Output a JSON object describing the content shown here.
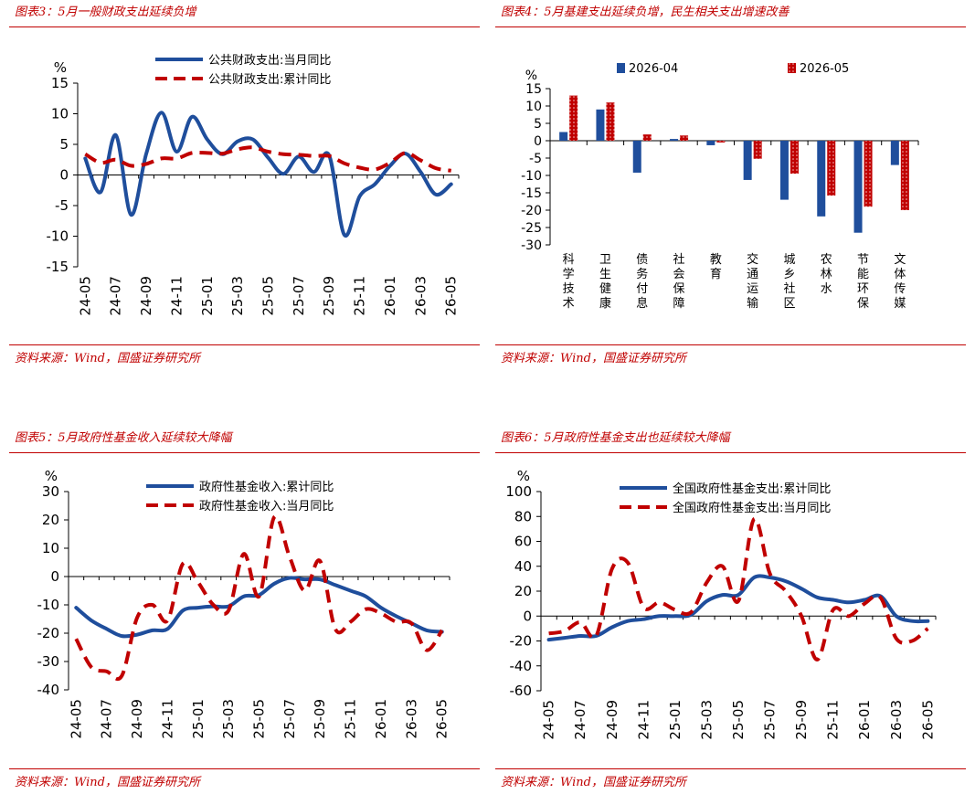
{
  "panels": [
    {
      "title": "图表3：5月一般财政支出延续负增",
      "source": "资料来源：Wind，国盛证券研究所"
    },
    {
      "title": "图表4：5月基建支出延续负增，民生相关支出增速改善",
      "source": "资料来源：Wind，国盛证券研究所"
    },
    {
      "title": "图表5：5月政府性基金收入延续较大降幅",
      "source": "资料来源：Wind，国盛证券研究所"
    },
    {
      "title": "图表6：5月政府性基金支出也延续较大降幅",
      "source": "资料来源：Wind，国盛证券研究所"
    }
  ],
  "colors": {
    "blue": "#1f4e9c",
    "red": "#c00000",
    "title_red": "#c00000"
  },
  "chart_data": [
    {
      "type": "line",
      "title": "",
      "ylabel": "%",
      "ylim": [
        -15,
        15
      ],
      "yticks": [
        15,
        10,
        5,
        0,
        -5,
        -10,
        -15
      ],
      "xtick_labels": [
        "24-05",
        "24-07",
        "24-09",
        "24-11",
        "25-01",
        "25-03",
        "25-05",
        "25-07",
        "25-09",
        "25-11",
        "26-01",
        "26-03",
        "26-05"
      ],
      "x": [
        "24-05",
        "24-06",
        "24-07",
        "24-08",
        "24-09",
        "24-10",
        "24-11",
        "24-12",
        "25-01",
        "25-02",
        "25-03",
        "25-04",
        "25-05",
        "25-06",
        "25-07",
        "25-08",
        "25-09",
        "25-10",
        "25-11",
        "25-12",
        "26-01",
        "26-02",
        "26-03",
        "26-04",
        "26-05"
      ],
      "series": [
        {
          "name": "公共财政支出:当月同比",
          "style": "solid",
          "color": "#1f4e9c",
          "values": [
            2.7,
            -2.8,
            6.5,
            -6.5,
            3.5,
            10.2,
            3.8,
            9.5,
            5.8,
            3.4,
            5.5,
            5.8,
            2.8,
            0.2,
            3.0,
            0.5,
            3.2,
            -9.8,
            -3.5,
            -1.5,
            1.5,
            3.5,
            0.5,
            -3.2,
            -1.5
          ]
        },
        {
          "name": "公共财政支出:累计同比",
          "style": "dashed",
          "color": "#c00000",
          "values": [
            3.4,
            2.0,
            2.5,
            1.5,
            1.8,
            2.7,
            2.7,
            3.6,
            3.6,
            3.5,
            4.2,
            4.5,
            3.8,
            3.4,
            3.3,
            3.1,
            3.1,
            1.9,
            1.2,
            0.9,
            2.0,
            3.6,
            2.4,
            1.1,
            0.7
          ]
        }
      ]
    },
    {
      "type": "bar",
      "title": "",
      "ylabel": "%",
      "ylim": [
        -30,
        15
      ],
      "yticks": [
        15,
        10,
        5,
        0,
        -5,
        -10,
        -15,
        -20,
        -25,
        -30
      ],
      "categories": [
        "科学技术",
        "卫生健康",
        "债务付息",
        "社会保障",
        "教育",
        "交通运输",
        "城乡社区",
        "农林水",
        "节能环保",
        "文体传媒"
      ],
      "series": [
        {
          "name": "2026-04",
          "color": "#1f4e9c",
          "values": [
            2.5,
            9,
            -9.2,
            0.5,
            -1.3,
            -11.3,
            -17,
            -21.8,
            -26.5,
            -7
          ]
        },
        {
          "name": "2026-05",
          "color": "#c00000",
          "pattern": "dots",
          "values": [
            13,
            11,
            1.8,
            1.5,
            -0.5,
            -5.2,
            -9.5,
            -15.8,
            -19,
            -20
          ]
        }
      ]
    },
    {
      "type": "line",
      "title": "",
      "ylabel": "%",
      "ylim": [
        -40,
        30
      ],
      "yticks": [
        30,
        20,
        10,
        0,
        -10,
        -20,
        -30,
        -40
      ],
      "xtick_labels": [
        "24-05",
        "24-07",
        "24-09",
        "24-11",
        "25-01",
        "25-03",
        "25-05",
        "25-07",
        "25-09",
        "25-11",
        "26-01",
        "26-03",
        "26-05"
      ],
      "x": [
        "24-05",
        "24-06",
        "24-07",
        "24-08",
        "24-09",
        "24-10",
        "24-11",
        "24-12",
        "25-01",
        "25-02",
        "25-03",
        "25-04",
        "25-05",
        "25-06",
        "25-07",
        "25-08",
        "25-09",
        "25-10",
        "25-11",
        "25-12",
        "26-01",
        "26-02",
        "26-03",
        "26-04",
        "26-05"
      ],
      "series": [
        {
          "name": "政府性基金收入:累计同比",
          "style": "solid",
          "color": "#1f4e9c",
          "values": [
            -11,
            -15.5,
            -18.5,
            -21,
            -20.5,
            -19,
            -18.5,
            -12,
            -11,
            -10.5,
            -10.5,
            -7,
            -6.5,
            -2.5,
            -0.5,
            -1,
            -1,
            -3,
            -5,
            -7,
            -11,
            -14,
            -16.5,
            -19,
            -19.5
          ]
        },
        {
          "name": "政府性基金收入:当月同比",
          "style": "dashed",
          "color": "#c00000",
          "values": [
            -22,
            -32,
            -33.5,
            -35,
            -14.5,
            -10,
            -15.5,
            4.5,
            -2,
            -10,
            -12,
            8,
            -7,
            21,
            7,
            -5,
            5.5,
            -18.5,
            -16,
            -11.5,
            -13,
            -16,
            -16.5,
            -26,
            -19
          ]
        }
      ]
    },
    {
      "type": "line",
      "title": "",
      "ylabel": "%",
      "ylim": [
        -60,
        100
      ],
      "yticks": [
        100,
        80,
        60,
        40,
        20,
        0,
        -20,
        -40,
        -60
      ],
      "xtick_labels": [
        "24-05",
        "24-07",
        "24-09",
        "24-11",
        "25-01",
        "25-03",
        "25-05",
        "25-07",
        "25-09",
        "25-11",
        "26-01",
        "26-03",
        "26-05"
      ],
      "x": [
        "24-05",
        "24-06",
        "24-07",
        "24-08",
        "24-09",
        "24-10",
        "24-11",
        "24-12",
        "25-01",
        "25-02",
        "25-03",
        "25-04",
        "25-05",
        "25-06",
        "25-07",
        "25-08",
        "25-09",
        "25-10",
        "25-11",
        "25-12",
        "26-01",
        "26-02",
        "26-03",
        "26-04",
        "26-05"
      ],
      "series": [
        {
          "name": "全国政府性基金支出:累计同比",
          "style": "solid",
          "color": "#1f4e9c",
          "values": [
            -19,
            -17.5,
            -16,
            -16,
            -9,
            -4,
            -2.5,
            0,
            0,
            1,
            12,
            17,
            17,
            31,
            31,
            28,
            22,
            15,
            13,
            11,
            13,
            16,
            0,
            -4,
            -4
          ]
        },
        {
          "name": "全国政府性基金支出:当月同比",
          "style": "dashed",
          "color": "#c00000",
          "values": [
            -14,
            -12,
            -5,
            -16,
            38,
            43,
            7,
            11,
            5,
            3,
            27,
            40,
            12,
            78,
            34,
            20,
            0,
            -35,
            5,
            0,
            10,
            15,
            -18,
            -20,
            -10
          ]
        }
      ]
    }
  ]
}
